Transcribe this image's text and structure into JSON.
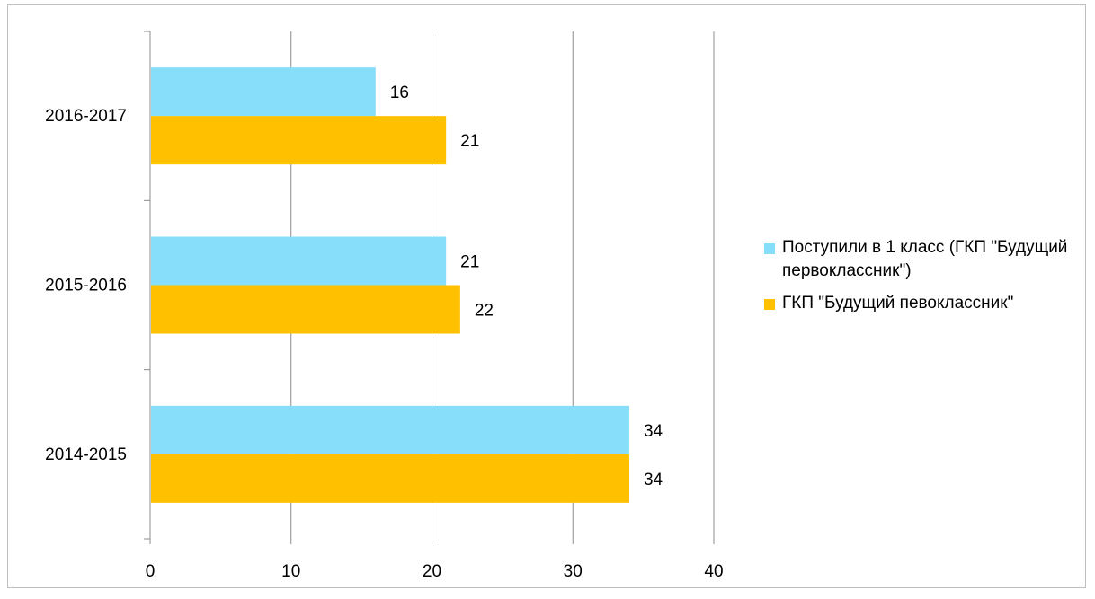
{
  "chart_data": {
    "type": "bar",
    "orientation": "horizontal",
    "categories": [
      "2014-2015",
      "2015-2016",
      "2016-2017"
    ],
    "series": [
      {
        "name": "Поступили в 1 класс (ГКП \"Будущий первоклассник\")",
        "values": [
          34,
          21,
          16
        ],
        "color": "#87DEFA"
      },
      {
        "name": "ГКП \"Будущий певоклассник\"",
        "values": [
          34,
          22,
          21
        ],
        "color": "#FFC000"
      }
    ],
    "xlim": [
      0,
      40
    ],
    "xticks": [
      0,
      10,
      20,
      30,
      40
    ],
    "title": "",
    "xlabel": "",
    "ylabel": "",
    "grid": true,
    "legend_position": "right",
    "data_labels": true
  }
}
